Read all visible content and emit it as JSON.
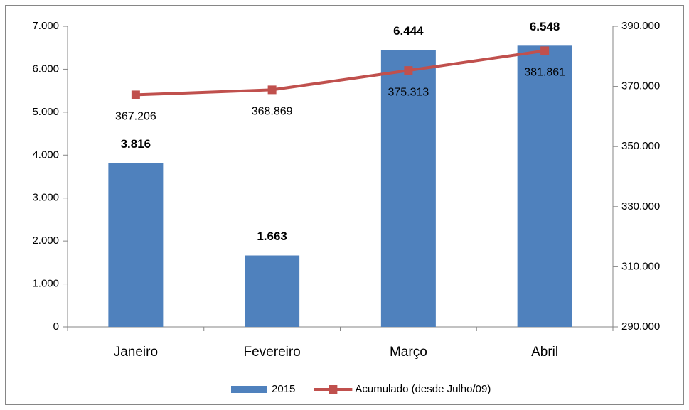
{
  "chart_data": {
    "type": "bar",
    "categories": [
      "Janeiro",
      "Fevereiro",
      "Março",
      "Abril"
    ],
    "series": [
      {
        "name": "2015",
        "type": "bar",
        "color": "#4f81bd",
        "values": [
          3816,
          1663,
          6444,
          6548
        ],
        "value_labels": [
          "3.816",
          "1.663",
          "6.444",
          "6.548"
        ]
      },
      {
        "name": "Acumulado (desde Julho/09)",
        "type": "line",
        "axis": "y2",
        "color": "#c0504d",
        "values": [
          367206,
          368869,
          375313,
          381861
        ],
        "value_labels": [
          "367.206",
          "368.869",
          "375.313",
          "381.861"
        ]
      }
    ],
    "ylim": [
      0,
      7000
    ],
    "yticks": [
      0,
      {
        "value": 1000,
        "label": "1.000"
      },
      {
        "value": 2000,
        "label": "2.000"
      },
      {
        "value": 3000,
        "label": "3.000"
      },
      {
        "value": 4000,
        "label": "4.000"
      },
      {
        "value": 5000,
        "label": "5.000"
      },
      {
        "value": 6000,
        "label": "6.000"
      },
      {
        "value": 7000,
        "label": "7.000"
      }
    ],
    "y2lim": [
      290000,
      390000
    ],
    "y2ticks": [
      {
        "value": 290000,
        "label": "290.000"
      },
      {
        "value": 310000,
        "label": "310.000"
      },
      {
        "value": 330000,
        "label": "330.000"
      },
      {
        "value": 350000,
        "label": "350.000"
      },
      {
        "value": 370000,
        "label": "370.000"
      },
      {
        "value": 390000,
        "label": "390.000"
      }
    ],
    "grid": false,
    "legend": "bottom"
  }
}
